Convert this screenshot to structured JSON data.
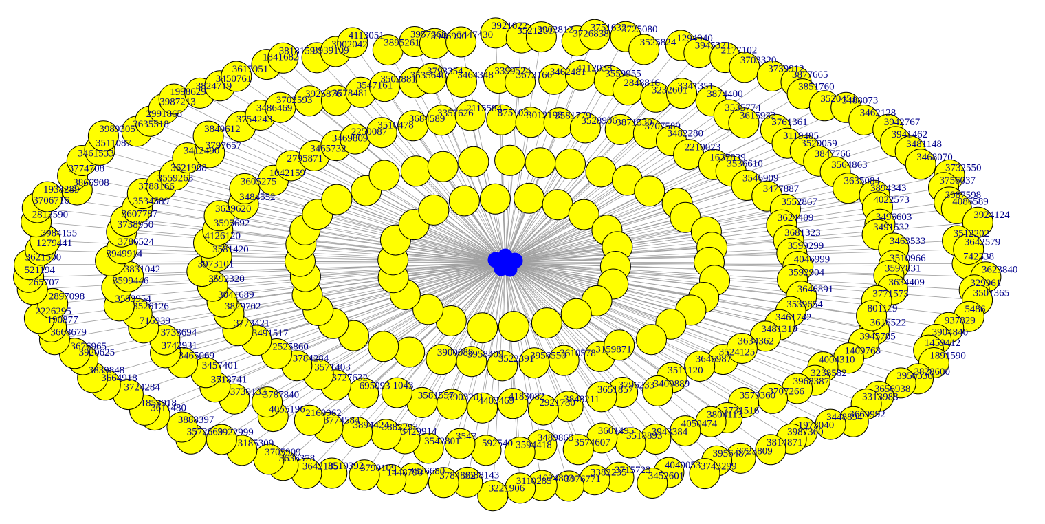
{
  "colors": {
    "background": "#ffffff",
    "leaf_fill": "#ffff00",
    "hub_fill": "#0000ff",
    "node_stroke": "#000000",
    "edge": "#a0a0a0",
    "label": "#00008b"
  },
  "diagram": {
    "type": "network-graph",
    "layout": "radial-rings",
    "hub_count": 1,
    "labels": [
      "742338",
      "3623840",
      "329961",
      "3501365",
      "5486",
      "937829",
      "3904840",
      "1459412",
      "1891590",
      "3828600",
      "3950536",
      "3656938",
      "3313988",
      "3669992",
      "3448894",
      "1973040",
      "3987360",
      "3814871",
      "3723809",
      "3956487",
      "3743299",
      "4040053",
      "3452601",
      "3715723",
      "3382235",
      "3076771",
      "1024803",
      "3110285",
      "3221906",
      "3588143",
      "3784882",
      "3826680",
      "1448798",
      "3790109",
      "3510392",
      "3642185",
      "3636378",
      "3705909",
      "3185309",
      "3922999",
      "3572669",
      "3888397",
      "3611480",
      "1853918",
      "3724284",
      "3664918",
      "3839848",
      "3920625",
      "3676965",
      "3668679",
      "190877",
      "2226295",
      "2897098",
      "265707",
      "521194",
      "3621500",
      "1279441",
      "3984155",
      "2813590",
      "3706716",
      "1938289",
      "3866908",
      "3774708",
      "3461533",
      "3511087",
      "3989305",
      "3635518",
      "2991865",
      "3987213",
      "1998629",
      "3824719",
      "3450761",
      "3617951",
      "1841682",
      "3818159",
      "3939109",
      "3002042",
      "4113051",
      "3895261",
      "3957368",
      "3946990",
      "3447430",
      "3921022",
      "3521261",
      "3902812",
      "3726838",
      "3751632",
      "3725080",
      "3525824",
      "1294940",
      "3945321",
      "2177102",
      "3703320",
      "3739912",
      "3877665",
      "3851760",
      "3520451",
      "3488073",
      "3462128",
      "3942767",
      "3941462",
      "3481148",
      "3468070",
      "3732550",
      "3756037",
      "3987598",
      "4086589",
      "3924124",
      "3512202",
      "3642579",
      "3616522",
      "3945785",
      "1409763",
      "4004310",
      "3238582",
      "3968387",
      "3707266",
      "3579360",
      "3731516",
      "3804113",
      "4050474",
      "3943384",
      "3518893",
      "3601495",
      "3574607",
      "3489865",
      "3594418",
      "592540",
      "3547",
      "3542801",
      "3429914",
      "3882293",
      "3894424",
      "3774584",
      "2160962",
      "4055196",
      "3787840",
      "3730133",
      "3518741",
      "3457401",
      "3465069",
      "3742931",
      "3738694",
      "716939",
      "3526126",
      "3593954",
      "3599446",
      "3831042",
      "3949914",
      "3786524",
      "3738950",
      "3607787",
      "3534589",
      "3788166",
      "3559263",
      "3621908",
      "3412490",
      "3797657",
      "3840612",
      "3754243",
      "3486469",
      "3702593",
      "3925876",
      "3578481",
      "3547161",
      "3502881",
      "3535640",
      "3793354",
      "3464348",
      "3399524",
      "3673166",
      "3462481",
      "4112038",
      "3559955",
      "2848816",
      "3232601",
      "3341351",
      "3874400",
      "3535774",
      "3615932",
      "3761361",
      "3119485",
      "3520059",
      "3847766",
      "3564863",
      "3635084",
      "3894343",
      "4022573",
      "3496603",
      "3491532",
      "3463533",
      "3510966",
      "3597831",
      "3634409",
      "3771573",
      "801119",
      "3524125",
      "3646987",
      "3511120",
      "3400889",
      "3796233",
      "3651857",
      "3848211",
      "2921780",
      "4183082",
      "4403469",
      "3903201",
      "3581557",
      "1043",
      "695093",
      "3727632",
      "3571403",
      "3784284",
      "2525860",
      "3491517",
      "3773421",
      "3829702",
      "3041689",
      "3592320",
      "3973101",
      "3581420",
      "4126120",
      "3595692",
      "3629620",
      "3484552",
      "3605275",
      "1042159",
      "2795871",
      "3465732",
      "3469809",
      "2250087",
      "3510478",
      "3684589",
      "3357626",
      "2115584",
      "875103",
      "3012193",
      "3581779",
      "3528906",
      "3871530",
      "3707589",
      "3482280",
      "2210023",
      "1637839",
      "3536610",
      "3546909",
      "3477887",
      "3552867",
      "3624409",
      "3681323",
      "3599299",
      "4046999",
      "3592904",
      "3646891",
      "3539654",
      "3461742",
      "3481319",
      "3634362",
      "3159871",
      "3610578",
      "3956550",
      "3522391",
      "3958409",
      "3900088"
    ]
  }
}
